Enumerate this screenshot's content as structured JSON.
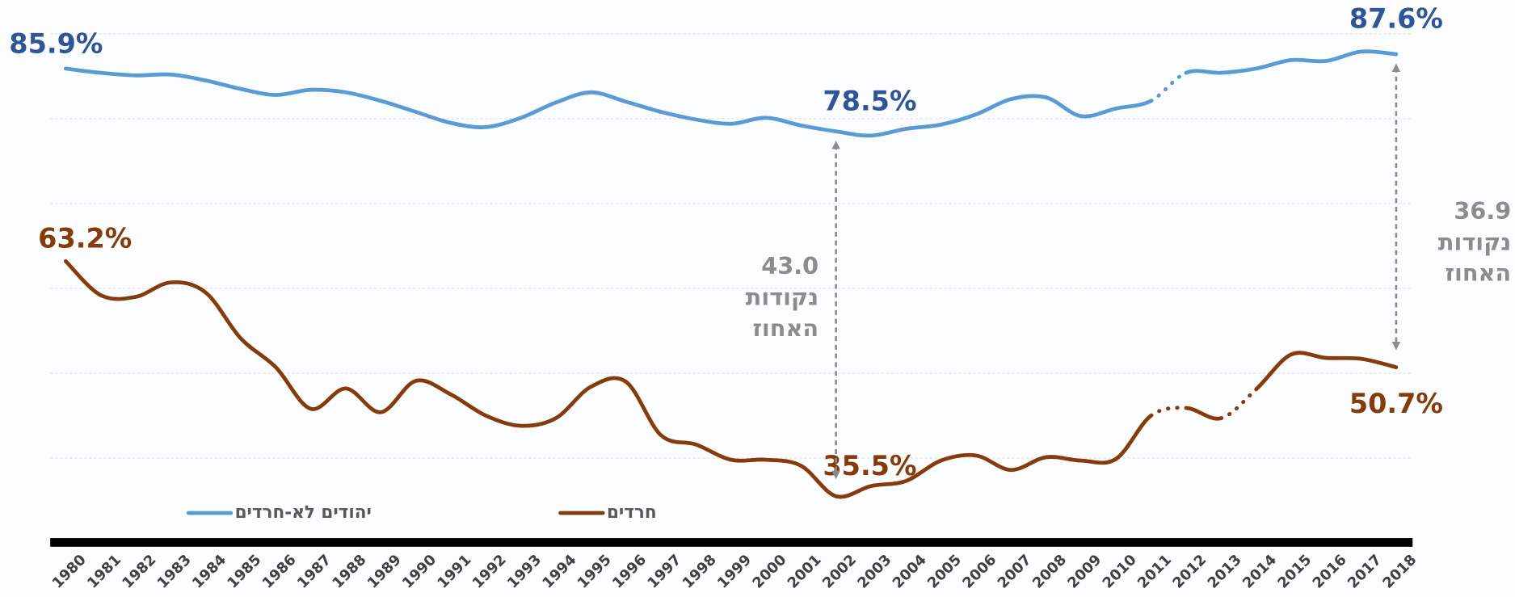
{
  "chart_data": {
    "type": "line",
    "categories": [
      "1980",
      "1981",
      "1982",
      "1983",
      "1984",
      "1985",
      "1986",
      "1987",
      "1988",
      "1989",
      "1990",
      "1991",
      "1992",
      "1993",
      "1994",
      "1995",
      "1996",
      "1997",
      "1998",
      "1999",
      "2000",
      "2001",
      "2002",
      "2003",
      "2004",
      "2005",
      "2006",
      "2007",
      "2008",
      "2009",
      "2010",
      "2011",
      "2012",
      "2013",
      "2014",
      "2015",
      "2016",
      "2017",
      "2018"
    ],
    "series": [
      {
        "name": "יהודים לא-חרדים",
        "color": "#5b9bd5",
        "label_color": "#2f5597",
        "values": [
          85.9,
          85.4,
          85.1,
          85.2,
          84.5,
          83.5,
          82.8,
          83.4,
          83.1,
          82.1,
          80.8,
          79.5,
          79.0,
          80.1,
          81.9,
          83.1,
          82.0,
          80.8,
          79.9,
          79.4,
          80.1,
          79.2,
          78.5,
          78.0,
          78.8,
          79.3,
          80.5,
          82.3,
          82.5,
          80.3,
          81.2,
          82.1,
          85.4,
          85.4,
          85.9,
          86.9,
          86.8,
          87.9,
          87.6
        ],
        "value_labels": [
          "85.9%",
          null,
          null,
          null,
          null,
          null,
          null,
          null,
          null,
          null,
          null,
          null,
          null,
          null,
          null,
          null,
          null,
          null,
          null,
          null,
          null,
          null,
          "78.5%",
          null,
          null,
          null,
          null,
          null,
          null,
          null,
          null,
          null,
          null,
          null,
          null,
          null,
          null,
          null,
          "87.6%"
        ],
        "dotted_segments": [
          "2011"
        ]
      },
      {
        "name": "חרדים",
        "color": "#843c0c",
        "label_color": "#843c0c",
        "values": [
          63.2,
          59.2,
          59.0,
          60.7,
          59.5,
          54.1,
          50.7,
          45.8,
          48.2,
          45.4,
          49.1,
          47.5,
          45.0,
          43.8,
          44.7,
          48.4,
          49.0,
          42.7,
          41.6,
          39.8,
          39.8,
          39.1,
          35.5,
          36.7,
          37.3,
          39.7,
          40.3,
          38.6,
          40.1,
          39.7,
          39.9,
          45.0,
          45.9,
          44.7,
          48.1,
          52.2,
          51.8,
          51.7,
          50.7
        ],
        "value_labels": [
          "63.2%",
          null,
          null,
          null,
          null,
          null,
          null,
          null,
          null,
          null,
          null,
          null,
          null,
          null,
          null,
          null,
          null,
          null,
          null,
          null,
          null,
          null,
          "35.5%",
          null,
          null,
          null,
          null,
          null,
          null,
          null,
          null,
          null,
          null,
          null,
          null,
          null,
          null,
          null,
          "50.7%"
        ],
        "dotted_segments": [
          "2011",
          "2013"
        ]
      }
    ],
    "ylim": [
      30,
      90
    ],
    "yticks": [
      40,
      50,
      60,
      70,
      80,
      90
    ],
    "grid": true,
    "annotations": [
      {
        "at": "2002",
        "lines": [
          "43.0",
          "נקודות",
          "האחוז"
        ]
      },
      {
        "at": "2018",
        "lines": [
          "36.9",
          "נקודות",
          "האחוז"
        ]
      }
    ]
  }
}
